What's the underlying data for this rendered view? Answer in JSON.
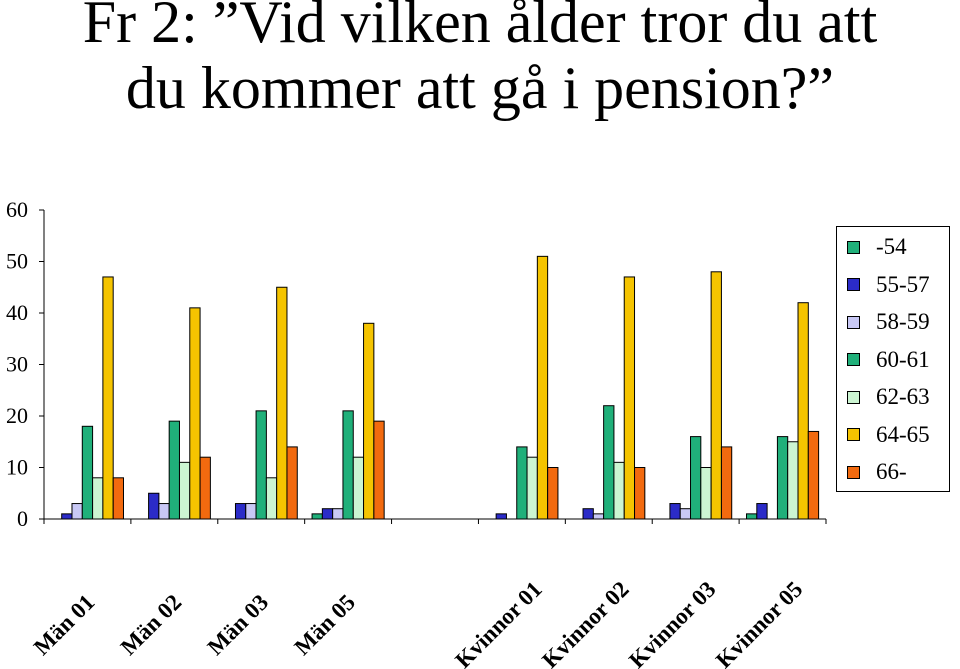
{
  "title": {
    "line1": "Fr 2: ”Vid vilken ålder tror du att",
    "line2": "du kommer att gå i pension?”"
  },
  "chart_data": {
    "type": "bar",
    "categories": [
      "Män 01",
      "Män 02",
      "Män 03",
      "Män 05",
      "",
      "Kvinnor 01",
      "Kvinnor 02",
      "Kvinnor 03",
      "Kvinnor 05"
    ],
    "series": [
      {
        "name": "-54",
        "color": "#20b07a",
        "values": [
          0,
          0,
          0,
          1,
          null,
          0,
          0,
          0,
          1
        ]
      },
      {
        "name": "55-57",
        "color": "#2b2bc8",
        "values": [
          1,
          5,
          3,
          2,
          null,
          1,
          2,
          3,
          3
        ]
      },
      {
        "name": "58-59",
        "color": "#c8c8f5",
        "values": [
          3,
          3,
          3,
          2,
          null,
          0,
          1,
          2,
          0
        ]
      },
      {
        "name": "60-61",
        "color": "#20b07a",
        "values": [
          18,
          19,
          21,
          21,
          null,
          14,
          22,
          16,
          16
        ]
      },
      {
        "name": "62-63",
        "color": "#ccf5d2",
        "values": [
          8,
          11,
          8,
          12,
          null,
          12,
          11,
          10,
          15
        ]
      },
      {
        "name": "64-65",
        "color": "#f5c400",
        "values": [
          47,
          41,
          45,
          38,
          null,
          51,
          47,
          48,
          42
        ]
      },
      {
        "name": "66-",
        "color": "#f26a0f",
        "values": [
          8,
          12,
          14,
          19,
          null,
          10,
          10,
          14,
          17
        ]
      }
    ],
    "ylim": [
      0,
      60
    ],
    "yticks": [
      "0",
      "10",
      "20",
      "30",
      "40",
      "50",
      "60"
    ],
    "grid": false,
    "legend_position": "right"
  }
}
